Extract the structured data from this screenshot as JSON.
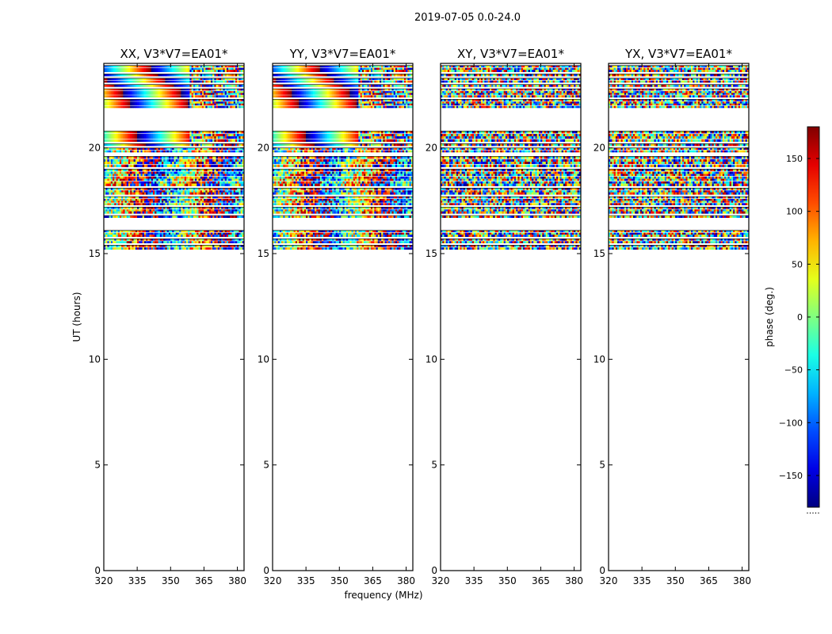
{
  "chart_data": {
    "type": "heatmap",
    "suptitle": "2019-07-05 0.0-24.0",
    "xlabel": "frequency (MHz)",
    "ylabel": "UT (hours)",
    "xlim": [
      320,
      383
    ],
    "ylim": [
      0,
      24
    ],
    "xticks": [
      "320",
      "335",
      "350",
      "365",
      "380"
    ],
    "yticks": [
      "0",
      "5",
      "10",
      "15",
      "20"
    ],
    "panels": [
      {
        "title": "XX, V3*V7=EA01*",
        "product": "XX"
      },
      {
        "title": "YY, V3*V7=EA01*",
        "product": "YY"
      },
      {
        "title": "XY, V3*V7=EA01*",
        "product": "XY"
      },
      {
        "title": "YX, V3*V7=EA01*",
        "product": "YX"
      }
    ],
    "data_time_bands_hours": [
      [
        15.2,
        15.4
      ],
      [
        15.5,
        15.7
      ],
      [
        15.8,
        16.1
      ],
      [
        16.7,
        16.8
      ],
      [
        16.9,
        17.2
      ],
      [
        17.3,
        17.7
      ],
      [
        17.8,
        18.1
      ],
      [
        18.2,
        19.0
      ],
      [
        19.1,
        19.6
      ],
      [
        19.8,
        20.0
      ],
      [
        20.1,
        20.2
      ],
      [
        20.3,
        20.8
      ],
      [
        21.9,
        22.3
      ],
      [
        22.4,
        22.8
      ],
      [
        22.9,
        23.0
      ],
      [
        23.1,
        23.3
      ],
      [
        23.4,
        23.5
      ],
      [
        23.6,
        23.9
      ]
    ],
    "colorbar": {
      "label": "phase (deg.)",
      "range": [
        -180,
        180
      ],
      "ticks": [
        "150",
        "100",
        "50",
        "0",
        "−50",
        "−100",
        "−150"
      ],
      "colormap": "jet",
      "under_label": "....."
    }
  }
}
